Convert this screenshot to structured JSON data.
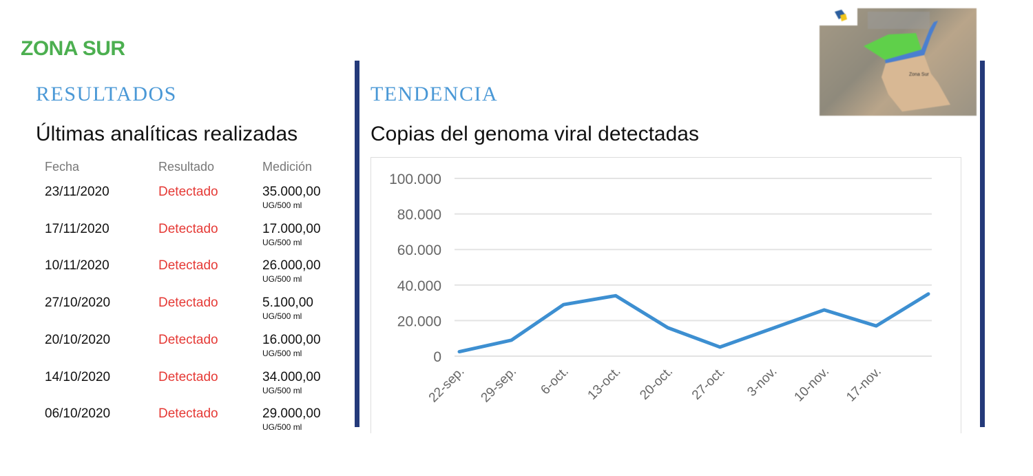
{
  "zone_title": "ZONA SUR",
  "results": {
    "heading": "RESULTADOS",
    "subtitle": "Últimas analíticas realizadas",
    "columns": [
      "Fecha",
      "Resultado",
      "Medición"
    ],
    "rows": [
      {
        "date": "23/11/2020",
        "result": "Detectado",
        "value": "35.000,00",
        "unit": "UG/500 ml"
      },
      {
        "date": "17/11/2020",
        "result": "Detectado",
        "value": "17.000,00",
        "unit": "UG/500 ml"
      },
      {
        "date": "10/11/2020",
        "result": "Detectado",
        "value": "26.000,00",
        "unit": "UG/500 ml"
      },
      {
        "date": "27/10/2020",
        "result": "Detectado",
        "value": "5.100,00",
        "unit": "UG/500 ml"
      },
      {
        "date": "20/10/2020",
        "result": "Detectado",
        "value": "16.000,00",
        "unit": "UG/500 ml"
      },
      {
        "date": "14/10/2020",
        "result": "Detectado",
        "value": "34.000,00",
        "unit": "UG/500 ml"
      },
      {
        "date": "06/10/2020",
        "result": "Detectado",
        "value": "29.000,00",
        "unit": "UG/500 ml"
      }
    ],
    "result_color": "#e53935"
  },
  "trend": {
    "heading": "TENDENCIA",
    "subtitle": "Copias del genoma viral detectadas"
  },
  "map": {
    "labels": [
      "Zona Sur"
    ]
  },
  "chart_data": {
    "type": "line",
    "title": "",
    "xlabel": "",
    "ylabel": "",
    "categories": [
      "22-sep.",
      "29-sep.",
      "6-oct.",
      "13-oct.",
      "20-oct.",
      "27-oct.",
      "3-nov.",
      "10-nov.",
      "17-nov.",
      ""
    ],
    "values": [
      2500,
      9000,
      29000,
      34000,
      16000,
      5100,
      15500,
      26000,
      17000,
      35000
    ],
    "ylim": [
      0,
      100000
    ],
    "yticks": [
      "0",
      "20.000",
      "40.000",
      "60.000",
      "80.000",
      "100.000"
    ],
    "grid": true,
    "line_color": "#3d8fd1"
  }
}
